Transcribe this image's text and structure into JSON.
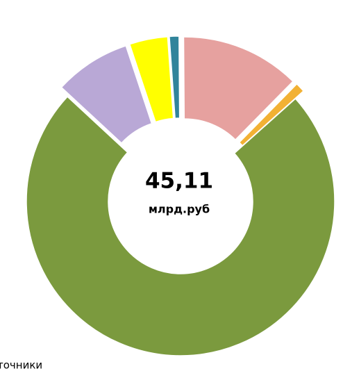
{
  "chart_data": {
    "type": "pie",
    "donut": true,
    "center_value": "45,11",
    "center_unit": "млрд.руб",
    "note": "точники",
    "values": [
      1,
      12.5,
      1,
      73.5,
      8,
      4
    ],
    "colors": [
      "#31849b",
      "#e6a19f",
      "#f2b134",
      "#7b9a3e",
      "#b9a8d6",
      "#ffff00"
    ]
  }
}
